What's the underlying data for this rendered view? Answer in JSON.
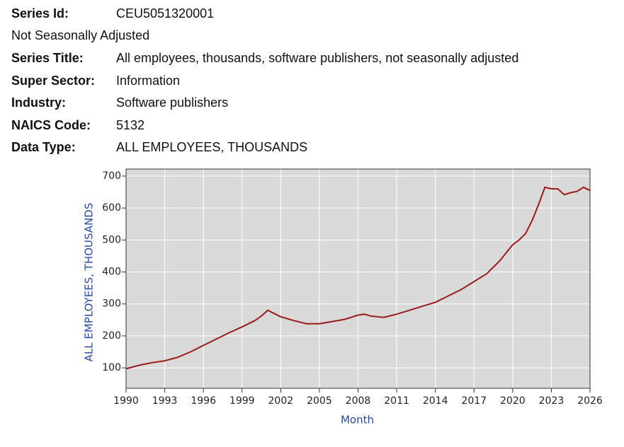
{
  "metadata": {
    "series_id": {
      "label": "Series Id:",
      "value": "CEU5051320001"
    },
    "adjustment": "Not Seasonally Adjusted",
    "rows": [
      {
        "label": "Series Title:",
        "value": "All employees, thousands, software publishers, not seasonally adjusted"
      },
      {
        "label": "Super Sector:",
        "value": "Information"
      },
      {
        "label": "Industry:",
        "value": "Software publishers"
      },
      {
        "label": "NAICS Code:",
        "value": "5132"
      },
      {
        "label": "Data Type:",
        "value": "ALL EMPLOYEES, THOUSANDS"
      }
    ]
  },
  "chart_data": {
    "type": "line",
    "y_label": "ALL EMPLOYEES, THOUSANDS",
    "x_label": "Month",
    "x": [
      1990,
      1991,
      1992,
      1993,
      1994,
      1995,
      1996,
      1997,
      1998,
      1999,
      2000,
      2000.5,
      2001,
      2001.5,
      2002,
      2003,
      2004,
      2005,
      2006,
      2007,
      2008,
      2008.5,
      2009,
      2010,
      2011,
      2012,
      2013,
      2014,
      2015,
      2016,
      2017,
      2018,
      2019,
      2020,
      2020.5,
      2021,
      2021.5,
      2022,
      2022.5,
      2023,
      2023.5,
      2024,
      2024.5,
      2025,
      2025.5,
      2026
    ],
    "series": [
      {
        "name": "All employees",
        "color": "#9b1b1b",
        "values": [
          97,
          108,
          116,
          122,
          133,
          150,
          170,
          190,
          210,
          228,
          248,
          262,
          280,
          270,
          260,
          248,
          238,
          238,
          245,
          252,
          265,
          268,
          262,
          258,
          268,
          280,
          293,
          305,
          325,
          345,
          370,
          395,
          435,
          485,
          500,
          520,
          560,
          610,
          665,
          660,
          660,
          642,
          648,
          652,
          665,
          655
        ]
      }
    ],
    "xlim": [
      1990,
      2026
    ],
    "xticks": [
      1990,
      1993,
      1996,
      1999,
      2002,
      2005,
      2008,
      2011,
      2014,
      2017,
      2020,
      2023,
      2026
    ],
    "ylim": [
      36,
      722
    ],
    "yticks": [
      100,
      200,
      300,
      400,
      500,
      600,
      700
    ],
    "grid": true
  }
}
